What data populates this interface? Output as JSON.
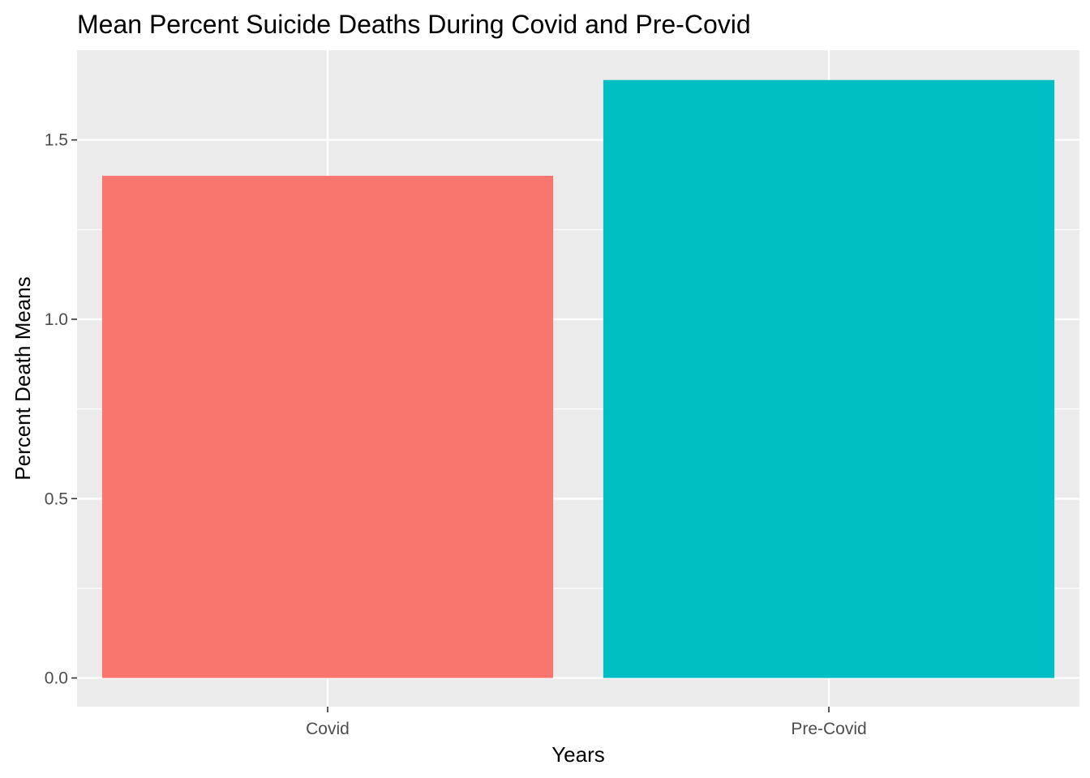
{
  "chart_data": {
    "type": "bar",
    "title": "Mean Percent Suicide Deaths During Covid and Pre-Covid",
    "xlabel": "Years",
    "ylabel": "Percent Death Means",
    "categories": [
      "Covid",
      "Pre-Covid"
    ],
    "values": [
      1.4,
      1.667
    ],
    "bar_colors": [
      "#F8766D",
      "#00BFC4"
    ],
    "ylim": [
      -0.08,
      1.75
    ],
    "y_ticks": [
      0.0,
      0.5,
      1.0,
      1.5
    ],
    "y_tick_labels": [
      "0.0",
      "0.5",
      "1.0",
      "1.5"
    ],
    "grid": true,
    "legend": "none",
    "panel_background": "#EBEBEB",
    "grid_color": "#FFFFFF"
  }
}
